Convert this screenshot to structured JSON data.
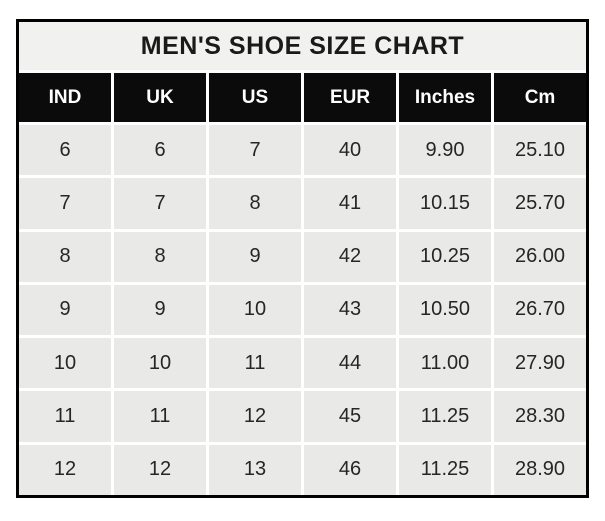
{
  "chart_data": {
    "type": "table",
    "title": "MEN'S SHOE SIZE CHART",
    "columns": [
      "IND",
      "UK",
      "US",
      "EUR",
      "Inches",
      "Cm"
    ],
    "rows": [
      [
        "6",
        "6",
        "7",
        "40",
        "9.90",
        "25.10"
      ],
      [
        "7",
        "7",
        "8",
        "41",
        "10.15",
        "25.70"
      ],
      [
        "8",
        "8",
        "9",
        "42",
        "10.25",
        "26.00"
      ],
      [
        "9",
        "9",
        "10",
        "43",
        "10.50",
        "26.70"
      ],
      [
        "10",
        "10",
        "11",
        "44",
        "11.00",
        "27.90"
      ],
      [
        "11",
        "11",
        "12",
        "45",
        "11.25",
        "28.30"
      ],
      [
        "12",
        "12",
        "13",
        "46",
        "11.25",
        "28.90"
      ]
    ],
    "layout": {
      "grid": "on",
      "grid_line_color": "#ffffff",
      "header_bg": "#0b0b0b",
      "header_text": "#ffffff",
      "cell_bg": "#e9e9e8",
      "title_bg": "#f1f1f0",
      "border_color": "#000000",
      "page_bg": "#ffffff"
    }
  }
}
